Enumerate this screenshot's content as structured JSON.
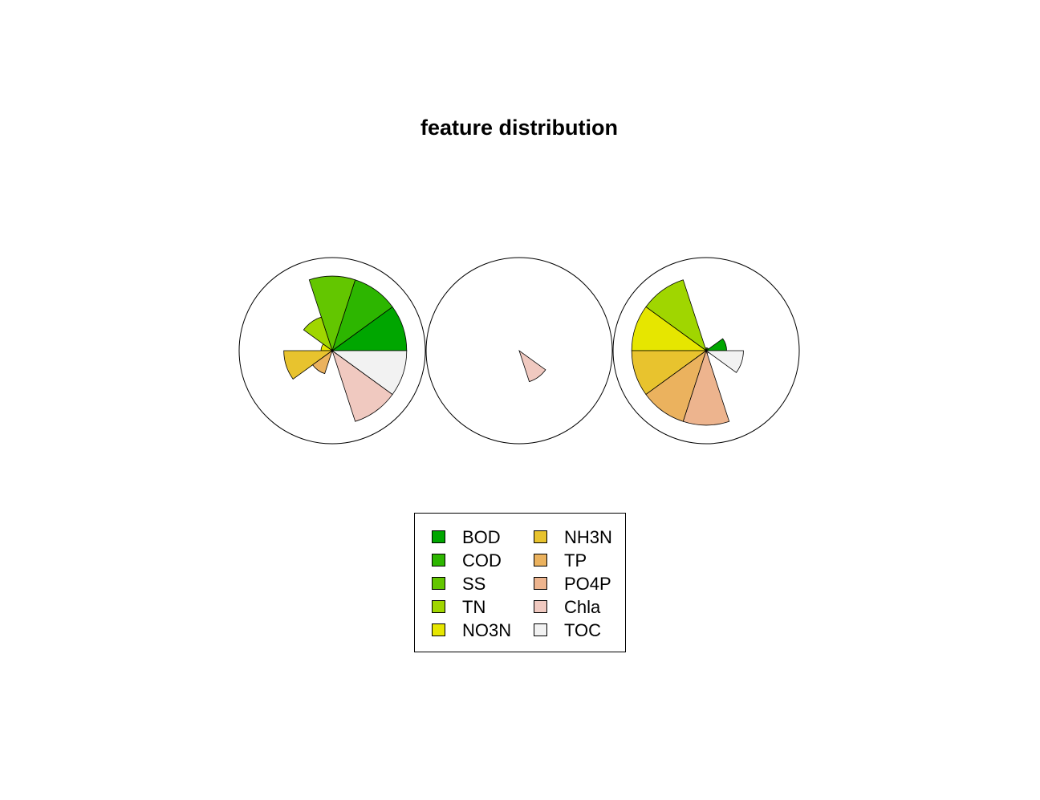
{
  "chart_data": {
    "type": "segment-star",
    "title": "feature distribution",
    "categories": [
      "BOD",
      "COD",
      "SS",
      "TN",
      "NO3N",
      "NH3N",
      "TP",
      "PO4P",
      "Chla",
      "TOC"
    ],
    "colors": [
      "#00A600",
      "#2DB600",
      "#63C600",
      "#A0D600",
      "#E6E600",
      "#E8C32E",
      "#EBB25E",
      "#EDB48E",
      "#F0C9C0",
      "#F2F2F2"
    ],
    "scale_max": 1,
    "series": [
      {
        "values": [
          0.8,
          0.8,
          0.8,
          0.38,
          0.12,
          0.52,
          0.26,
          0.0,
          0.8,
          0.8
        ]
      },
      {
        "values": [
          0.0,
          0.0,
          0.0,
          0.0,
          0.0,
          0.0,
          0.0,
          0.0,
          0.35,
          0.0
        ]
      },
      {
        "values": [
          0.22,
          0.03,
          0.03,
          0.8,
          0.8,
          0.8,
          0.8,
          0.8,
          0.03,
          0.4
        ]
      }
    ],
    "legend": {
      "position": "bottom",
      "columns": 2
    }
  }
}
